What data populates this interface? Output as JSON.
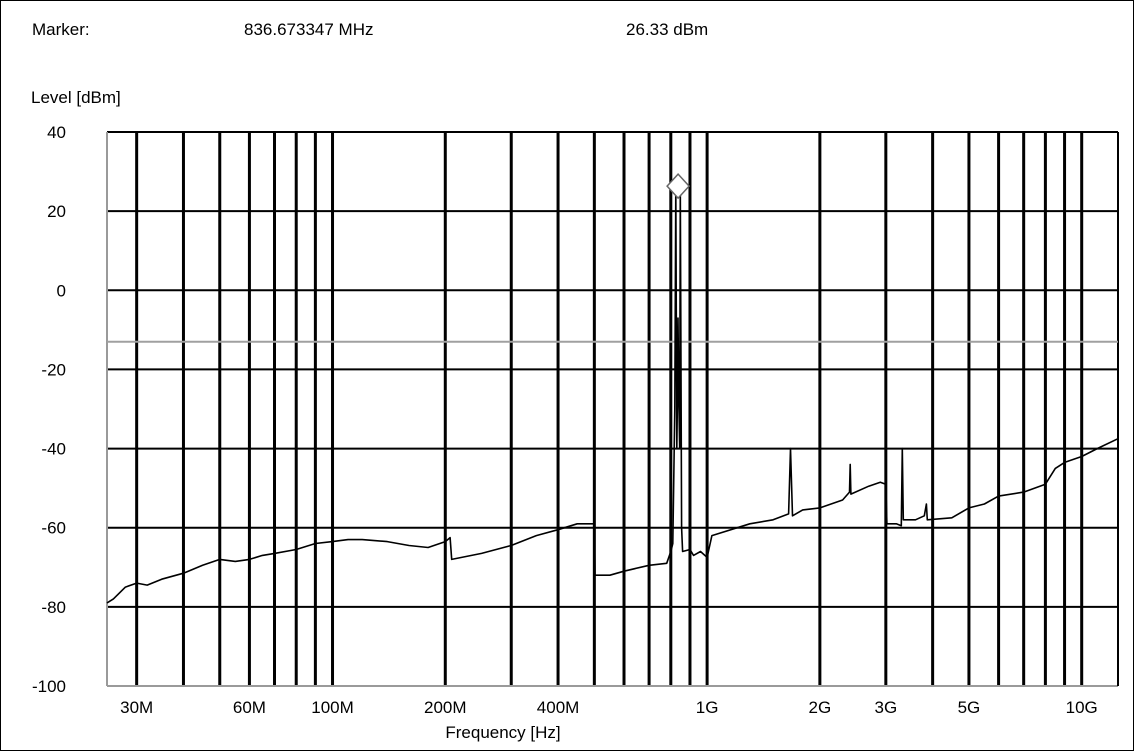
{
  "header": {
    "marker_label": "Marker:",
    "marker_freq": "836.673347 MHz",
    "marker_level": "26.33 dBm"
  },
  "chart_data": {
    "type": "line",
    "title": "",
    "ylabel": "Level [dBm]",
    "xlabel": "Frequency [Hz]",
    "x_scale": "log",
    "xlim": [
      25000000,
      12500000000
    ],
    "ylim": [
      -100,
      40
    ],
    "grid": true,
    "y_ticks": [
      40,
      20,
      0,
      -20,
      -40,
      -60,
      -80,
      -100
    ],
    "y_tick_labels": [
      "40",
      "20",
      "0",
      "-20",
      "-40",
      "-60",
      "-80",
      "-100"
    ],
    "x_ticks": [
      30000000,
      60000000,
      100000000,
      200000000,
      400000000,
      1000000000,
      2000000000,
      3000000000,
      5000000000,
      10000000000
    ],
    "x_tick_labels": [
      "30M",
      "60M",
      "100M",
      "200M",
      "400M",
      "1G",
      "2G",
      "3G",
      "5G",
      "10G"
    ],
    "x_gridlines": [
      30000000,
      40000000,
      50000000,
      60000000,
      70000000,
      80000000,
      90000000,
      100000000,
      200000000,
      300000000,
      400000000,
      500000000,
      600000000,
      700000000,
      800000000,
      900000000,
      1000000000,
      2000000000,
      3000000000,
      4000000000,
      5000000000,
      6000000000,
      7000000000,
      8000000000,
      9000000000,
      10000000000
    ],
    "limit_line": {
      "value": -13,
      "color": "#a0a0a0"
    },
    "marker": {
      "x": 836673347,
      "y": 26.33,
      "shape": "diamond"
    },
    "series": [
      {
        "color": "#000000",
        "points": [
          [
            25000000,
            -79
          ],
          [
            26000000,
            -78
          ],
          [
            28000000,
            -75
          ],
          [
            30000000,
            -74
          ],
          [
            32000000,
            -74.5
          ],
          [
            35000000,
            -73
          ],
          [
            40000000,
            -71.5
          ],
          [
            45000000,
            -69.5
          ],
          [
            50000000,
            -68
          ],
          [
            55000000,
            -68.5
          ],
          [
            60000000,
            -68
          ],
          [
            65000000,
            -67
          ],
          [
            70000000,
            -66.5
          ],
          [
            80000000,
            -65.5
          ],
          [
            90000000,
            -64
          ],
          [
            100000000,
            -63.5
          ],
          [
            110000000,
            -63
          ],
          [
            120000000,
            -63
          ],
          [
            140000000,
            -63.5
          ],
          [
            160000000,
            -64.5
          ],
          [
            180000000,
            -65
          ],
          [
            200000000,
            -63.5
          ],
          [
            206000000,
            -62.5
          ],
          [
            208000000,
            -68
          ],
          [
            250000000,
            -66.5
          ],
          [
            300000000,
            -64.5
          ],
          [
            350000000,
            -62
          ],
          [
            400000000,
            -60.5
          ],
          [
            450000000,
            -59
          ],
          [
            500000000,
            -59
          ],
          [
            502000000,
            -72
          ],
          [
            550000000,
            -72
          ],
          [
            600000000,
            -71
          ],
          [
            700000000,
            -69.5
          ],
          [
            780000000,
            -69
          ],
          [
            800000000,
            -66
          ],
          [
            810000000,
            -64
          ],
          [
            820000000,
            -30
          ],
          [
            825000000,
            26.33
          ],
          [
            830000000,
            -40
          ],
          [
            833000000,
            -28
          ],
          [
            836000000,
            -7
          ],
          [
            840000000,
            -26
          ],
          [
            845000000,
            -40
          ],
          [
            848000000,
            26.33
          ],
          [
            855000000,
            -60
          ],
          [
            860000000,
            -66
          ],
          [
            900000000,
            -65.5
          ],
          [
            920000000,
            -67
          ],
          [
            960000000,
            -66
          ],
          [
            1000000000,
            -67.5
          ],
          [
            1030000000,
            -62
          ],
          [
            1300000000,
            -59
          ],
          [
            1500000000,
            -58
          ],
          [
            1650000000,
            -56.5
          ],
          [
            1670000000,
            -40
          ],
          [
            1690000000,
            -57
          ],
          [
            1800000000,
            -55.5
          ],
          [
            2000000000,
            -55
          ],
          [
            2300000000,
            -53
          ],
          [
            2400000000,
            -51
          ],
          [
            2410000000,
            -44
          ],
          [
            2420000000,
            -51.5
          ],
          [
            2700000000,
            -49.5
          ],
          [
            2900000000,
            -48.5
          ],
          [
            3000000000,
            -49
          ],
          [
            3020000000,
            -59
          ],
          [
            3200000000,
            -59
          ],
          [
            3300000000,
            -59.5
          ],
          [
            3320000000,
            -40
          ],
          [
            3340000000,
            -58
          ],
          [
            3600000000,
            -58
          ],
          [
            3800000000,
            -57
          ],
          [
            3850000000,
            -54
          ],
          [
            3870000000,
            -58
          ],
          [
            4500000000,
            -57.5
          ],
          [
            5000000000,
            -55
          ],
          [
            5500000000,
            -54
          ],
          [
            6000000000,
            -52
          ],
          [
            7000000000,
            -51
          ],
          [
            8000000000,
            -49
          ],
          [
            8500000000,
            -45
          ],
          [
            9000000000,
            -43.5
          ],
          [
            10000000000,
            -42
          ],
          [
            11000000000,
            -40
          ],
          [
            12500000000,
            -37.5
          ]
        ]
      }
    ]
  }
}
